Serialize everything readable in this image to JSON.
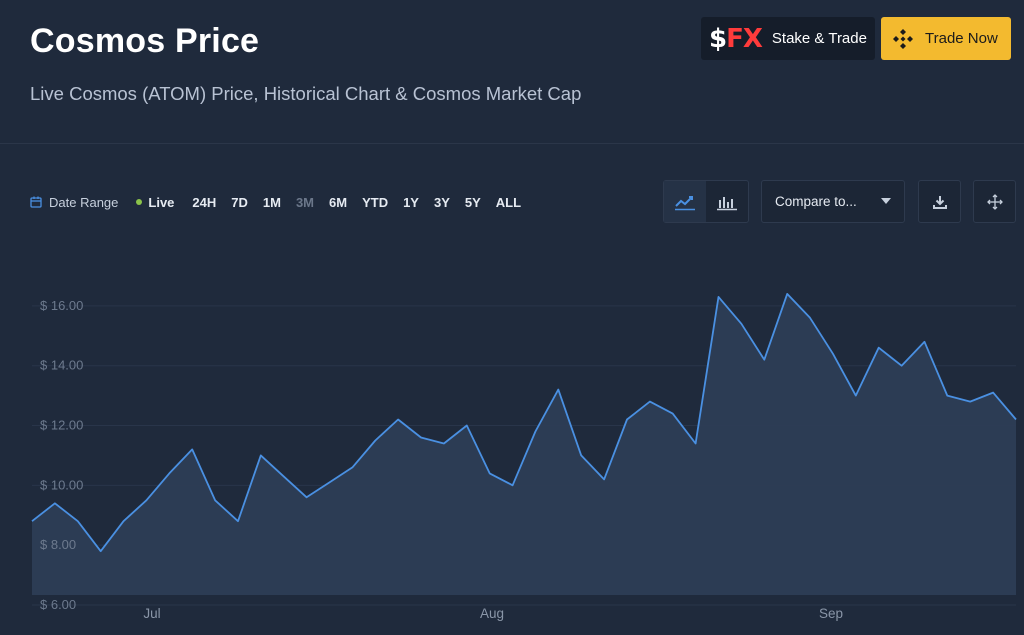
{
  "header": {
    "title": "Cosmos Price",
    "subtitle": "Live Cosmos (ATOM) Price, Historical Chart & Cosmos Market Cap"
  },
  "actions": {
    "sfx_logo": "FX",
    "sfx_logo_dollar": "$",
    "sfx_label": "Stake & Trade",
    "trade_label": "Trade Now"
  },
  "toolbar": {
    "date_range": "Date Range",
    "live": "Live",
    "ranges": [
      "24H",
      "7D",
      "1M",
      "3M",
      "6M",
      "YTD",
      "1Y",
      "3Y",
      "5Y",
      "ALL"
    ],
    "dimmed_range": "3M",
    "compare_label": "Compare to..."
  },
  "icons": {
    "calendar": "calendar-icon",
    "line_chart": "line-chart-icon",
    "bar_chart": "bar-chart-icon",
    "download": "download-icon",
    "fullscreen": "move-arrows-icon"
  },
  "colors": {
    "background": "#1f2a3c",
    "line": "#4a90e2",
    "area": "#2d3d55",
    "trade_button": "#f3ba2f",
    "live_dot": "#8bc34a"
  },
  "chart_data": {
    "type": "area",
    "title": "",
    "xlabel": "",
    "ylabel": "",
    "x_tick_labels": [
      "Jul",
      "Aug",
      "Sep"
    ],
    "y_tick_labels": [
      "$ 6.00",
      "$ 8.00",
      "$ 10.00",
      "$ 12.00",
      "$ 14.00",
      "$ 16.00"
    ],
    "ylim": [
      6,
      17.6
    ],
    "grid": true,
    "series": [
      {
        "x": [
          "Jun 19",
          "Jun 21",
          "Jun 24",
          "Jun 27",
          "Jun 29",
          "Jul 1",
          "Jul 3",
          "Jul 5",
          "Jul 8",
          "Jul 10",
          "Jul 12",
          "Jul 15",
          "Jul 17",
          "Jul 19",
          "Jul 21",
          "Jul 23",
          "Jul 25",
          "Jul 27",
          "Jul 29",
          "Jul 31",
          "Aug 2",
          "Aug 4",
          "Aug 6",
          "Aug 8",
          "Aug 10",
          "Aug 12",
          "Aug 14",
          "Aug 16",
          "Aug 18",
          "Aug 20",
          "Aug 22",
          "Aug 24",
          "Aug 26",
          "Aug 28",
          "Aug 29",
          "Aug 31",
          "Sep 2",
          "Sep 4",
          "Sep 6",
          "Sep 8",
          "Sep 10",
          "Sep 12",
          "Sep 14",
          "Sep 16"
        ],
        "values": [
          8.8,
          9.4,
          8.8,
          7.8,
          8.8,
          9.5,
          10.4,
          11.2,
          9.5,
          8.8,
          11.0,
          10.3,
          9.6,
          10.1,
          10.6,
          11.5,
          12.2,
          11.6,
          11.4,
          12.0,
          10.4,
          10.0,
          11.8,
          13.2,
          11.0,
          10.2,
          12.2,
          12.8,
          12.4,
          11.4,
          16.3,
          15.4,
          14.2,
          16.4,
          15.6,
          14.4,
          13.0,
          14.6,
          14.0,
          14.8,
          13.0,
          12.8,
          13.1,
          12.2
        ]
      }
    ]
  }
}
